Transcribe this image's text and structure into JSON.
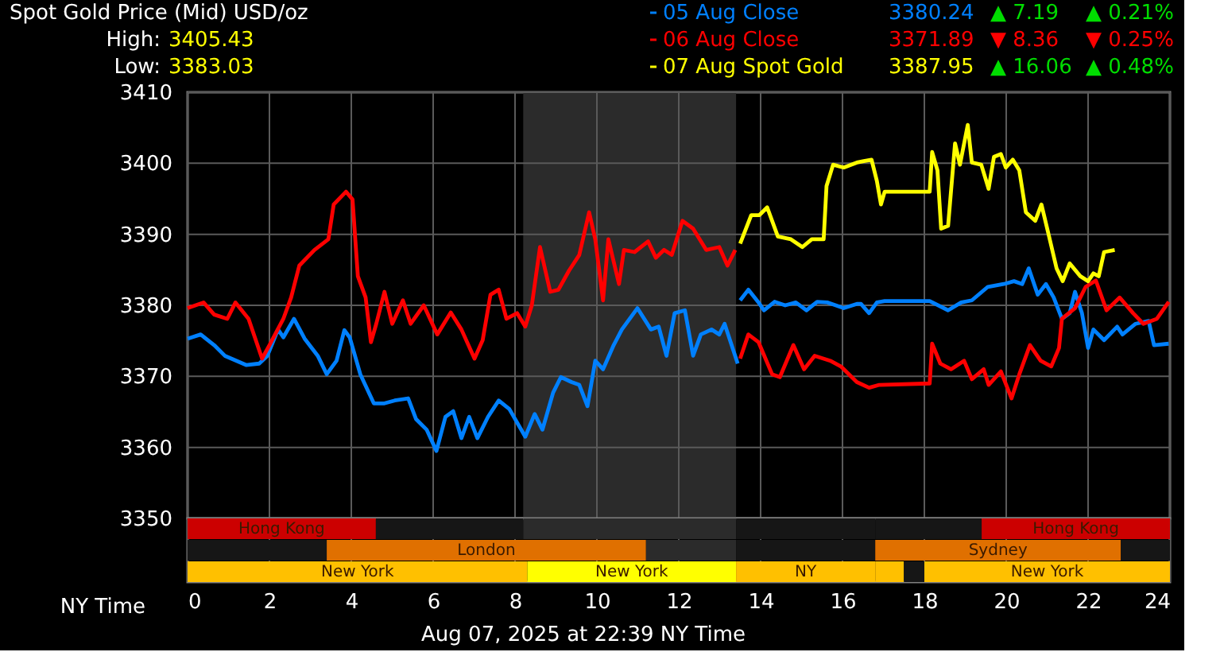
{
  "chart_data": [
    {
      "type": "line",
      "title": "Spot Gold Price (Mid) USD/oz",
      "xlim": [
        0,
        24
      ],
      "xticks": [
        0,
        2,
        4,
        6,
        8,
        10,
        12,
        14,
        16,
        18,
        20,
        22,
        24
      ],
      "ylim": [
        3350,
        3410
      ],
      "yticks": [
        3350,
        3360,
        3370,
        3380,
        3390,
        3400,
        3410
      ],
      "grid": true,
      "legend": "top right",
      "tick_labels": "y",
      "line_style": "solid",
      "marker": "none",
      "annotations": [
        "High:",
        "3405.43",
        "Low:",
        "3383.03",
        "3380.24",
        "▲ 7.19",
        "▲ 0.21%",
        "3371.89",
        "▼ 8.36",
        "▼ 0.25%",
        "3387.95",
        "▲ 16.06",
        "▲ 0.48%"
      ],
      "bands": [
        {
          "axis": "x",
          "from": 8.2,
          "to": 13.4,
          "color": "#2b2b2b"
        }
      ],
      "series": [
        {
          "name": "05 Aug Close",
          "color": "#0080ff",
          "x": [
            0,
            0.32,
            0.65,
            0.91,
            1.43,
            1.75,
            1.95,
            2.21,
            2.34,
            2.6,
            2.86,
            3.18,
            3.4,
            3.64,
            3.83,
            3.96,
            4.22,
            4.55,
            4.81,
            5.06,
            5.39,
            5.58,
            5.84,
            6.08,
            6.3,
            6.49,
            6.69,
            6.88,
            7.08,
            7.34,
            7.6,
            7.86,
            8.25,
            8.48,
            8.67,
            8.93,
            9.12,
            9.38,
            9.57,
            9.77,
            9.96,
            10.15,
            10.41,
            10.61,
            10.99,
            11.32,
            11.51,
            11.7,
            11.9,
            12.15,
            12.35,
            12.54,
            12.8,
            12.99,
            13.12,
            13.44,
            13.47,
            13.5,
            13.7,
            13.95,
            14.08,
            14.34,
            14.6,
            14.86,
            15.12,
            15.38,
            15.64,
            16.03,
            16.35,
            16.45,
            16.65,
            16.84,
            17.03,
            18.13,
            18.58,
            18.9,
            19.16,
            19.55,
            19.94,
            20.19,
            20.39,
            20.55,
            20.77,
            20.97,
            21.16,
            21.36,
            21.55,
            21.68,
            21.85,
            22.0,
            22.13,
            22.39,
            22.71,
            22.84,
            23.16,
            23.48,
            23.61,
            23.97
          ],
          "values": [
            3375.3,
            3375.9,
            3374.4,
            3372.9,
            3371.6,
            3371.8,
            3372.9,
            3376.6,
            3375.5,
            3378.1,
            3375.3,
            3372.9,
            3370.3,
            3372.2,
            3376.5,
            3375.5,
            3370.3,
            3366.2,
            3366.2,
            3366.6,
            3366.9,
            3364.0,
            3362.5,
            3359.5,
            3364.3,
            3365.1,
            3361.3,
            3364.3,
            3361.3,
            3364.3,
            3366.6,
            3365.4,
            3361.5,
            3364.7,
            3362.5,
            3367.7,
            3369.9,
            3369.2,
            3368.8,
            3365.8,
            3372.2,
            3371.0,
            3374.4,
            3376.6,
            3379.6,
            3376.6,
            3377.0,
            3372.9,
            3378.9,
            3379.3,
            3372.9,
            3375.9,
            3376.6,
            3375.9,
            3377.4,
            3371.8,
            null,
            3380.7,
            3382.2,
            3380.4,
            3379.3,
            3380.5,
            3380.0,
            3380.4,
            3379.3,
            3380.5,
            3380.4,
            3379.6,
            3380.2,
            3380.2,
            3378.9,
            3380.4,
            3380.6,
            3380.6,
            3379.3,
            3380.4,
            3380.7,
            3382.6,
            3383.0,
            3383.4,
            3383.0,
            3385.2,
            3381.5,
            3383.0,
            3381.1,
            3378.1,
            3378.9,
            3381.9,
            3378.9,
            3374.0,
            3376.6,
            3375.1,
            3377.0,
            3375.9,
            3377.4,
            3377.8,
            3374.4,
            3374.6
          ]
        },
        {
          "name": "06 Aug Close",
          "color": "#ff0000",
          "x": [
            0,
            0.39,
            0.65,
            0.97,
            1.17,
            1.49,
            1.82,
            2.0,
            2.34,
            2.53,
            2.73,
            3.1,
            3.44,
            3.57,
            3.87,
            4.03,
            4.16,
            4.35,
            4.48,
            4.61,
            4.81,
            5.0,
            5.26,
            5.45,
            5.77,
            6.1,
            6.43,
            6.69,
            7.01,
            7.21,
            7.4,
            7.6,
            7.79,
            8.05,
            8.25,
            8.41,
            8.61,
            8.86,
            9.06,
            9.32,
            9.57,
            9.81,
            9.96,
            10.15,
            10.28,
            10.54,
            10.66,
            10.92,
            11.25,
            11.44,
            11.64,
            11.83,
            12.09,
            12.35,
            12.67,
            12.99,
            13.19,
            13.38,
            13.45,
            13.5,
            13.7,
            13.95,
            14.28,
            14.47,
            14.8,
            15.06,
            15.32,
            15.7,
            15.96,
            16.35,
            16.65,
            16.9,
            18.13,
            18.19,
            18.39,
            18.65,
            18.97,
            19.16,
            19.45,
            19.57,
            19.87,
            20.13,
            20.32,
            20.58,
            20.84,
            21.1,
            21.29,
            21.36,
            21.68,
            21.94,
            22.19,
            22.45,
            22.77,
            23.1,
            23.35,
            23.68,
            23.97
          ],
          "values": [
            3379.6,
            3380.4,
            3378.7,
            3378.1,
            3380.4,
            3378.1,
            3372.5,
            3374.4,
            3378.1,
            3381.1,
            3385.6,
            3387.8,
            3389.3,
            3394.2,
            3396.0,
            3394.9,
            3384.1,
            3381.1,
            3374.8,
            3377.4,
            3381.9,
            3377.4,
            3380.7,
            3377.4,
            3380.0,
            3375.9,
            3379.0,
            3376.6,
            3372.5,
            3375.1,
            3381.5,
            3382.2,
            3378.1,
            3378.9,
            3377.0,
            3380.0,
            3388.2,
            3381.9,
            3382.2,
            3384.9,
            3387.1,
            3393.1,
            3389.3,
            3380.7,
            3389.3,
            3383.0,
            3387.8,
            3387.5,
            3389.0,
            3386.7,
            3387.8,
            3387.1,
            3391.9,
            3390.8,
            3387.8,
            3388.2,
            3385.6,
            3387.8,
            null,
            3372.5,
            3375.9,
            3374.8,
            3370.3,
            3369.9,
            3374.4,
            3371.0,
            3372.9,
            3372.2,
            3371.4,
            3369.2,
            3368.4,
            3368.8,
            3369.0,
            3374.6,
            3371.8,
            3371.0,
            3372.2,
            3369.6,
            3371.0,
            3368.8,
            3370.7,
            3366.9,
            3370.3,
            3374.4,
            3372.2,
            3371.4,
            3374.0,
            3378.1,
            3379.6,
            3382.6,
            3383.5,
            3379.3,
            3381.1,
            3378.9,
            3377.4,
            3378.1,
            3380.5
          ]
        },
        {
          "name": "07 Aug Spot Gold",
          "color": "#ffff00",
          "x": [
            13.5,
            13.77,
            13.97,
            14.16,
            14.42,
            14.74,
            15.02,
            15.25,
            15.54,
            15.61,
            15.77,
            16.03,
            16.35,
            16.52,
            16.71,
            16.84,
            16.94,
            17.03,
            18.13,
            18.19,
            18.32,
            18.41,
            18.58,
            18.75,
            18.87,
            19.06,
            19.16,
            19.39,
            19.57,
            19.7,
            19.87,
            19.99,
            20.16,
            20.32,
            20.48,
            20.71,
            20.86,
            21.03,
            21.23,
            21.38,
            21.55,
            21.81,
            22.0,
            22.13,
            22.26,
            22.39,
            22.65
          ],
          "values": [
            3388.7,
            3392.7,
            3392.7,
            3393.8,
            3389.7,
            3389.3,
            3388.2,
            3389.3,
            3389.3,
            3396.8,
            3399.8,
            3399.4,
            3400.1,
            3400.3,
            3400.5,
            3397.5,
            3394.2,
            3396.0,
            3396.0,
            3401.6,
            3399.0,
            3390.8,
            3391.2,
            3402.8,
            3399.8,
            3405.4,
            3400.1,
            3399.8,
            3396.4,
            3400.9,
            3401.3,
            3399.4,
            3400.5,
            3399.0,
            3393.1,
            3391.9,
            3394.2,
            3390.1,
            3385.2,
            3383.4,
            3385.9,
            3384.1,
            3383.4,
            3384.5,
            3384.1,
            3387.5,
            3387.8
          ]
        }
      ]
    },
    {
      "type": "bar",
      "orientation": "horizontal",
      "stacked": true,
      "categories": [
        null,
        null,
        null
      ],
      "xlim": [
        0,
        24
      ],
      "xticks": [
        0,
        2,
        4,
        6,
        8,
        10,
        12,
        14,
        16,
        18,
        20,
        22,
        24
      ],
      "xlabel": "NY Time",
      "tick_labels": "x",
      "grid": "x",
      "annotations": [
        "Aug 07, 2025 at 22:39 NY Time"
      ],
      "series": [
        {
          "colors": [
            "#cc0000",
            "#161616",
            "#ffc000"
          ],
          "values": [
            4.6,
            3.4,
            8.3
          ],
          "value_labels": [
            "Hong Kong",
            null,
            "New York"
          ]
        },
        {
          "colors": [
            "#161616",
            "#e07000",
            "#ffff00"
          ],
          "values": [
            3.6,
            7.8,
            5.1
          ],
          "value_labels": [
            null,
            "London",
            "New York"
          ]
        },
        {
          "colors": [
            "#2b2b2b",
            "#2b2b2b",
            "#ffc000"
          ],
          "values": [
            5.2,
            2.2,
            3.4
          ],
          "value_labels": [
            null,
            null,
            "NY"
          ]
        },
        {
          "colors": [
            "#161616",
            "#161616",
            "#ffc000"
          ],
          "values": [
            3.4,
            3.4,
            0.7
          ],
          "value_labels": [
            null,
            null,
            null
          ]
        },
        {
          "colors": [
            "#161616",
            "#e07000",
            "#161616"
          ],
          "values": [
            2.6,
            6.0,
            0.5
          ],
          "value_labels": [
            null,
            "Sydney",
            null
          ]
        },
        {
          "colors": [
            "#cc0000",
            "#161616",
            "#ffc000"
          ],
          "values": [
            4.6,
            1.2,
            6.0
          ],
          "value_labels": [
            "Hong Kong",
            null,
            "New York"
          ]
        }
      ]
    }
  ]
}
